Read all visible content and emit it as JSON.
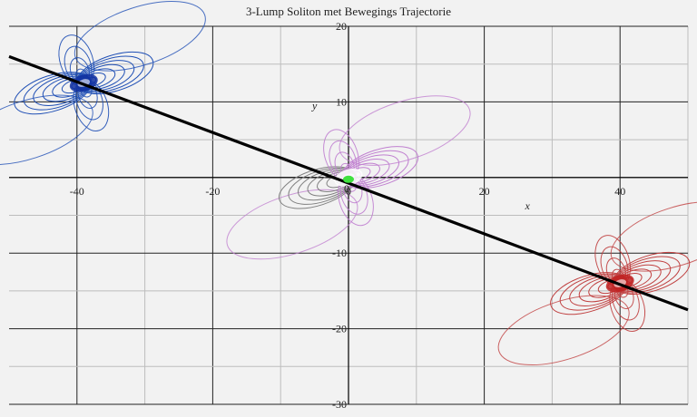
{
  "chart_data": {
    "type": "contour",
    "title": "3-Lump Soliton met Bewegings Trajectorie",
    "xlabel": "x",
    "ylabel": "y",
    "xlim": [
      -50,
      50
    ],
    "ylim": [
      -30,
      20
    ],
    "xticks": [
      -40,
      -20,
      0,
      20,
      40
    ],
    "yticks": [
      20,
      10,
      -10,
      -20,
      -30
    ],
    "grid": true,
    "lumps": [
      {
        "name": "lump-left",
        "center": [
          -39,
          12.5
        ],
        "color": "#1f4fb5",
        "core": "#1030a0"
      },
      {
        "name": "lump-center",
        "center": [
          0,
          0
        ],
        "color": "#c080d0",
        "core": "#ffffff",
        "secondary": "#808080"
      },
      {
        "name": "lump-right",
        "center": [
          40,
          -14
        ],
        "color": "#c04040",
        "core": "#c02020"
      }
    ],
    "trajectory": {
      "x": [
        -50,
        50
      ],
      "y": [
        16.0,
        -17.5
      ],
      "color": "#000000"
    },
    "center_marker": {
      "x": 0,
      "y": 0,
      "color": "#40e040"
    }
  }
}
